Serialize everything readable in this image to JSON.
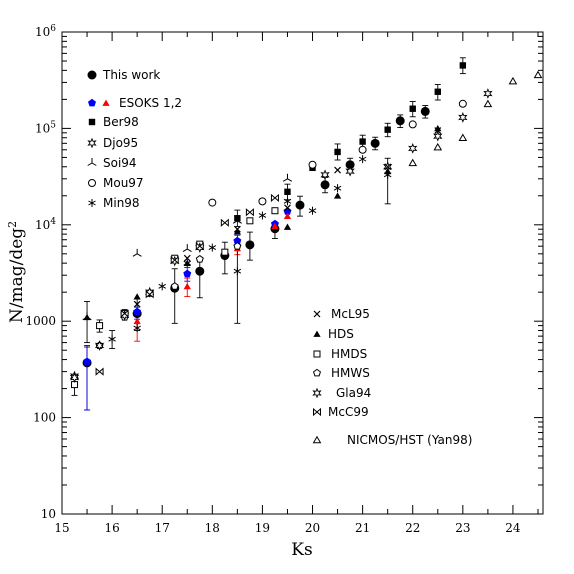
{
  "chart_data": {
    "type": "scatter",
    "xlabel": "Ks",
    "ylabel_html": "N/mag/deg<tspan baseline-shift=\"super\" font-size=\"11\">2</tspan>",
    "ylabel_text": "N/mag/deg2",
    "xlim": [
      15,
      24.6
    ],
    "ylim": [
      10,
      1000000
    ],
    "yscale": "log",
    "x_ticks": [
      "15",
      "16",
      "17",
      "18",
      "19",
      "20",
      "21",
      "22",
      "23",
      "24"
    ],
    "y_ticks": [
      {
        "value": 10,
        "label": "10"
      },
      {
        "value": 100,
        "label": "100"
      },
      {
        "value": 1000,
        "label": "1000"
      },
      {
        "value": 10000,
        "label": "10",
        "sup": "4"
      },
      {
        "value": 100000,
        "label": "10",
        "sup": "5"
      },
      {
        "value": 1000000,
        "label": "10",
        "sup": "6"
      }
    ],
    "grid": false,
    "legend_left": [
      {
        "label": "This work",
        "marker": "circle-filled"
      },
      {
        "label": "ESOKS 1,2",
        "marker": "pentagon-blue+triangle-red"
      },
      {
        "label": "Ber98",
        "marker": "square-filled"
      },
      {
        "label": "Djo95",
        "marker": "star-open"
      },
      {
        "label": "Soi94",
        "marker": "tristar"
      },
      {
        "label": "Mou97",
        "marker": "circle-open"
      },
      {
        "label": "Min98",
        "marker": "asterisk"
      }
    ],
    "legend_right": [
      {
        "label": "McL95",
        "marker": "cross"
      },
      {
        "label": "HDS",
        "marker": "triangle-filled"
      },
      {
        "label": "HMDS",
        "marker": "square-open"
      },
      {
        "label": "HMWS",
        "marker": "pentagon-open"
      },
      {
        "label": "Gla94",
        "marker": "star-open"
      },
      {
        "label": "McC99",
        "marker": "bowtie"
      },
      {
        "label": "NICMOS/HST (Yan98)",
        "marker": "triangle-open"
      }
    ],
    "series": [
      {
        "name": "This work",
        "marker": "circle-filled",
        "color": "#000000",
        "points": [
          {
            "x": 15.5,
            "y": 370,
            "lo": 120,
            "hi": 540
          },
          {
            "x": 16.5,
            "y": 1200,
            "lo": 800,
            "hi": 1700
          },
          {
            "x": 17.25,
            "y": 2200,
            "lo": 950,
            "hi": 3500
          },
          {
            "x": 17.75,
            "y": 3300,
            "lo": 1750,
            "hi": 4500
          },
          {
            "x": 18.25,
            "y": 4800,
            "lo": 3100,
            "hi": 6600
          },
          {
            "x": 18.75,
            "y": 6200,
            "lo": 4300,
            "hi": 8400
          },
          {
            "x": 19.25,
            "y": 9100,
            "lo": 7200,
            "hi": 10500
          },
          {
            "x": 19.75,
            "y": 16000,
            "lo": 12300,
            "hi": 19800
          },
          {
            "x": 20.25,
            "y": 26000,
            "lo": 21500,
            "hi": 31000
          },
          {
            "x": 20.75,
            "y": 42000,
            "lo": 35000,
            "hi": 49000
          },
          {
            "x": 21.25,
            "y": 70000,
            "lo": 60000,
            "hi": 81000
          },
          {
            "x": 21.75,
            "y": 120000,
            "lo": 102000,
            "hi": 138000
          },
          {
            "x": 22.25,
            "y": 150000,
            "lo": 128000,
            "hi": 173000
          }
        ]
      },
      {
        "name": "ESOKS 1,2 (pentagon)",
        "marker": "pentagon-filled",
        "color": "#0000ff",
        "points": [
          {
            "x": 15.5,
            "y": 380,
            "lo": 120,
            "hi": 560
          },
          {
            "x": 16.5,
            "y": 1250,
            "lo": 1050,
            "hi": 1400
          },
          {
            "x": 17.5,
            "y": 3100,
            "lo": 2600,
            "hi": 3600
          },
          {
            "x": 18.5,
            "y": 6800,
            "lo": 5800,
            "hi": 7800
          },
          {
            "x": 19.25,
            "y": 10200
          },
          {
            "x": 19.5,
            "y": 13800
          }
        ]
      },
      {
        "name": "ESOKS 1,2 (triangle)",
        "marker": "triangle-filled",
        "color": "#ff0000",
        "points": [
          {
            "x": 16.5,
            "y": 1000,
            "lo": 620,
            "hi": 1300
          },
          {
            "x": 17.5,
            "y": 2300,
            "lo": 1800,
            "hi": 2800
          },
          {
            "x": 18.5,
            "y": 5700,
            "lo": 4900,
            "hi": 6500
          },
          {
            "x": 19.25,
            "y": 9700
          },
          {
            "x": 19.5,
            "y": 12300
          }
        ]
      },
      {
        "name": "Ber98",
        "marker": "square-filled",
        "color": "#000000",
        "points": [
          {
            "x": 18.5,
            "y": 11700,
            "lo": 9600,
            "hi": 14200
          },
          {
            "x": 19.5,
            "y": 22000,
            "lo": 18200,
            "hi": 26400
          },
          {
            "x": 20.0,
            "y": 39000
          },
          {
            "x": 20.5,
            "y": 57000,
            "lo": 47000,
            "hi": 69000
          },
          {
            "x": 21.0,
            "y": 73000,
            "lo": 62000,
            "hi": 85000
          },
          {
            "x": 21.5,
            "y": 97000,
            "lo": 82000,
            "hi": 113000
          },
          {
            "x": 22.0,
            "y": 160000,
            "lo": 132000,
            "hi": 190000
          },
          {
            "x": 22.5,
            "y": 240000,
            "lo": 197000,
            "hi": 285000
          },
          {
            "x": 23.0,
            "y": 450000,
            "lo": 370000,
            "hi": 540000
          }
        ]
      },
      {
        "name": "Djo95",
        "marker": "star-open",
        "color": "#000000",
        "points": [
          {
            "x": 15.25,
            "y": 270
          },
          {
            "x": 20.25,
            "y": 33000
          },
          {
            "x": 20.75,
            "y": 36000
          },
          {
            "x": 21.5,
            "y": 40000
          },
          {
            "x": 22.0,
            "y": 62000
          },
          {
            "x": 22.5,
            "y": 83000
          },
          {
            "x": 23.0,
            "y": 130000
          },
          {
            "x": 23.5,
            "y": 230000
          }
        ]
      },
      {
        "name": "Soi94",
        "marker": "tristar",
        "color": "#000000",
        "points": [
          {
            "x": 15.5,
            "y": 1100,
            "lo": 600,
            "hi": 1600
          },
          {
            "x": 16.5,
            "y": 5000
          },
          {
            "x": 17.5,
            "y": 5600
          },
          {
            "x": 18.5,
            "y": 11000
          },
          {
            "x": 19.5,
            "y": 30000
          }
        ]
      },
      {
        "name": "Mou97",
        "marker": "circle-open",
        "color": "#000000",
        "points": [
          {
            "x": 18.0,
            "y": 17000
          },
          {
            "x": 19.0,
            "y": 17500
          },
          {
            "x": 20.0,
            "y": 42000
          },
          {
            "x": 21.0,
            "y": 60000
          },
          {
            "x": 22.0,
            "y": 110000
          },
          {
            "x": 23.0,
            "y": 180000
          }
        ]
      },
      {
        "name": "Min98",
        "marker": "asterisk",
        "color": "#000000",
        "points": [
          {
            "x": 16.0,
            "y": 650,
            "lo": 520,
            "hi": 800
          },
          {
            "x": 16.5,
            "y": 850
          },
          {
            "x": 17.0,
            "y": 2300
          },
          {
            "x": 17.5,
            "y": 4000
          },
          {
            "x": 18.0,
            "y": 5800
          },
          {
            "x": 18.5,
            "y": 3300,
            "lo": 950,
            "hi": 5900
          },
          {
            "x": 19.0,
            "y": 12500
          },
          {
            "x": 19.5,
            "y": 17500
          },
          {
            "x": 20.0,
            "y": 14000
          },
          {
            "x": 20.5,
            "y": 24000
          },
          {
            "x": 21.0,
            "y": 48000
          },
          {
            "x": 21.5,
            "y": 33000,
            "lo": 16500,
            "hi": 49000
          }
        ]
      },
      {
        "name": "McL95",
        "marker": "cross",
        "color": "#000000",
        "points": [
          {
            "x": 16.5,
            "y": 1500
          },
          {
            "x": 17.5,
            "y": 4500
          },
          {
            "x": 18.5,
            "y": 9000
          },
          {
            "x": 19.5,
            "y": 15000
          },
          {
            "x": 20.5,
            "y": 37000
          },
          {
            "x": 21.5,
            "y": 40000
          },
          {
            "x": 22.5,
            "y": 95000
          }
        ]
      },
      {
        "name": "HDS",
        "marker": "triangle-filled",
        "color": "#000000",
        "points": [
          {
            "x": 15.5,
            "y": 1100
          },
          {
            "x": 16.5,
            "y": 1800
          },
          {
            "x": 17.5,
            "y": 4000
          },
          {
            "x": 18.5,
            "y": 8500
          },
          {
            "x": 19.5,
            "y": 9500
          },
          {
            "x": 20.5,
            "y": 20000
          },
          {
            "x": 21.5,
            "y": 36000
          },
          {
            "x": 22.5,
            "y": 100000
          }
        ]
      },
      {
        "name": "HMDS",
        "marker": "square-open",
        "color": "#000000",
        "points": [
          {
            "x": 15.25,
            "y": 220,
            "lo": 170,
            "hi": 270
          },
          {
            "x": 15.75,
            "y": 900,
            "lo": 770,
            "hi": 1030
          },
          {
            "x": 16.25,
            "y": 1200,
            "lo": 1080,
            "hi": 1320
          },
          {
            "x": 16.75,
            "y": 1950
          },
          {
            "x": 17.25,
            "y": 4500
          },
          {
            "x": 17.75,
            "y": 6300
          },
          {
            "x": 18.25,
            "y": 5200
          },
          {
            "x": 18.75,
            "y": 11000
          },
          {
            "x": 19.25,
            "y": 14000
          }
        ]
      },
      {
        "name": "HMWS",
        "marker": "pentagon-open",
        "color": "#000000",
        "points": [
          {
            "x": 15.75,
            "y": 560
          },
          {
            "x": 16.25,
            "y": 1100
          },
          {
            "x": 16.75,
            "y": 1950
          },
          {
            "x": 17.25,
            "y": 2300
          },
          {
            "x": 17.75,
            "y": 4400
          },
          {
            "x": 18.5,
            "y": 6000
          }
        ]
      },
      {
        "name": "Gla94",
        "marker": "star-open",
        "color": "#000000",
        "points": [
          {
            "x": 15.25,
            "y": 260
          },
          {
            "x": 15.75,
            "y": 560
          },
          {
            "x": 16.25,
            "y": 1150
          },
          {
            "x": 16.75,
            "y": 2000
          },
          {
            "x": 17.25,
            "y": 4200
          },
          {
            "x": 17.75,
            "y": 5800
          }
        ]
      },
      {
        "name": "McC99",
        "marker": "bowtie",
        "color": "#000000",
        "points": [
          {
            "x": 15.75,
            "y": 300
          },
          {
            "x": 16.25,
            "y": 1200
          },
          {
            "x": 16.75,
            "y": 1900
          },
          {
            "x": 17.25,
            "y": 4300
          },
          {
            "x": 17.75,
            "y": 6000
          },
          {
            "x": 18.25,
            "y": 10500
          },
          {
            "x": 18.75,
            "y": 13500
          },
          {
            "x": 19.25,
            "y": 19000
          }
        ]
      },
      {
        "name": "NICMOS/HST (Yan98)",
        "marker": "triangle-open",
        "color": "#000000",
        "points": [
          {
            "x": 22.0,
            "y": 44000
          },
          {
            "x": 22.5,
            "y": 64000
          },
          {
            "x": 23.0,
            "y": 80000
          },
          {
            "x": 23.5,
            "y": 180000
          },
          {
            "x": 24.0,
            "y": 310000
          },
          {
            "x": 24.5,
            "y": 360000
          }
        ]
      }
    ]
  }
}
